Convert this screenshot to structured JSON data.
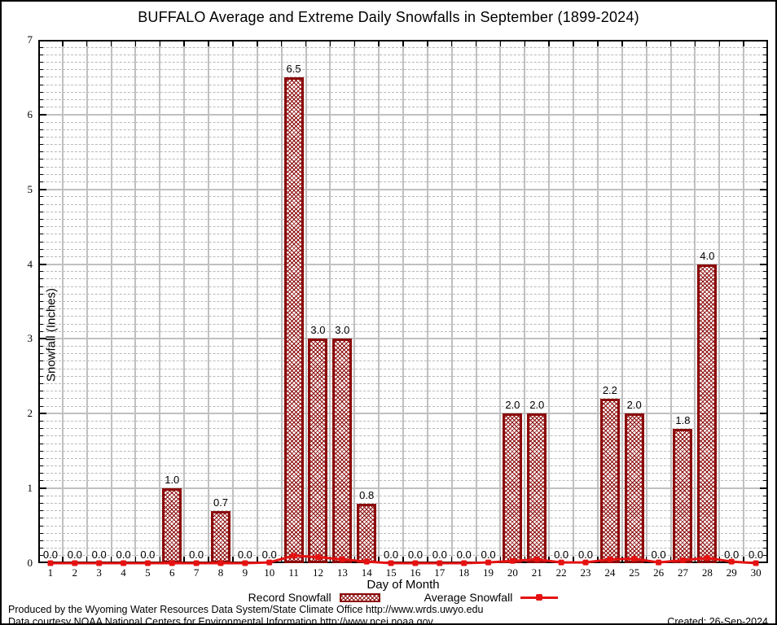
{
  "title": "BUFFALO Average and Extreme Daily Snowfalls in September (1899-2024)",
  "axes": {
    "xlabel": "Day of Month",
    "ylabel": "Snowfall (Inches)"
  },
  "legend": {
    "record_label": "Record Snowfall",
    "average_label": "Average Snowfall"
  },
  "footer": {
    "line1": "Produced by the Wyoming Water Resources Data System/State Climate Office http://www.wrds.uwyo.edu",
    "line2": "Data courtesy NOAA National Centers for Environmental Information http://www.ncei.noaa.gov",
    "created": "Created: 26-Sep-2024"
  },
  "colors": {
    "bar_border": "#8b0a0a",
    "line": "#e51212",
    "grid_major": "#c0c0c0",
    "grid_minor": "#b9b9b9"
  },
  "chart_data": {
    "type": "bar",
    "title": "BUFFALO Average and Extreme Daily Snowfalls in September (1899-2024)",
    "xlabel": "Day of Month",
    "ylabel": "Snowfall (Inches)",
    "x": [
      1,
      2,
      3,
      4,
      5,
      6,
      7,
      8,
      9,
      10,
      11,
      12,
      13,
      14,
      15,
      16,
      17,
      18,
      19,
      20,
      21,
      22,
      23,
      24,
      25,
      26,
      27,
      28,
      29,
      30
    ],
    "series": [
      {
        "name": "Record Snowfall",
        "type": "bar",
        "values": [
          0.0,
          0.0,
          0.0,
          0.0,
          0.0,
          1.0,
          0.0,
          0.7,
          0.0,
          0.0,
          6.5,
          3.0,
          3.0,
          0.8,
          0.0,
          0.0,
          0.0,
          0.0,
          0.0,
          2.0,
          2.0,
          0.0,
          0.0,
          2.2,
          2.0,
          0.0,
          1.8,
          4.0,
          0.0,
          0.0
        ]
      },
      {
        "name": "Average Snowfall",
        "type": "line",
        "values": [
          0.0,
          0.0,
          0.0,
          0.0,
          0.0,
          0.0,
          0.0,
          0.0,
          0.0,
          0.01,
          0.1,
          0.08,
          0.05,
          0.02,
          0.0,
          0.0,
          0.0,
          0.0,
          0.01,
          0.03,
          0.05,
          0.01,
          0.01,
          0.05,
          0.06,
          0.01,
          0.04,
          0.07,
          0.02,
          0.0
        ]
      }
    ],
    "ylim": [
      0,
      7
    ],
    "xlim": [
      0.5,
      30.5
    ],
    "y_major_step": 1,
    "y_minor_step": 0.1,
    "grid": true,
    "bar_value_labels": true,
    "legend_position": "bottom"
  }
}
